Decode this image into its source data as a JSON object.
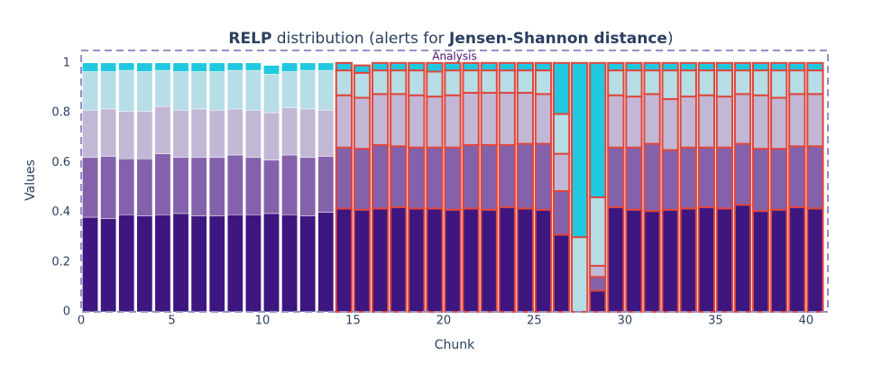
{
  "chart_data": {
    "type": "stacked-bar",
    "title": [
      {
        "text": "RELP",
        "bold": true
      },
      {
        "text": " distribution (alerts for ",
        "bold": false
      },
      {
        "text": "Jensen-Shannon distance",
        "bold": true
      },
      {
        "text": ")",
        "bold": false
      }
    ],
    "x_label": "Chunk",
    "y_label": "Values",
    "annotation": "Analysis",
    "x": [
      0.5,
      1.5,
      2.5,
      3.5,
      4.5,
      5.5,
      6.5,
      7.5,
      8.5,
      9.5,
      10.5,
      11.5,
      12.5,
      13.5,
      14.5,
      15.5,
      16.5,
      17.5,
      18.5,
      19.5,
      20.5,
      21.5,
      22.5,
      23.5,
      24.5,
      25.5,
      26.5,
      27.5,
      28.5,
      29.5,
      30.5,
      31.5,
      32.5,
      33.5,
      34.5,
      35.5,
      36.5,
      37.5,
      38.5,
      39.5,
      40.5
    ],
    "alerts": [
      false,
      false,
      false,
      false,
      false,
      false,
      false,
      false,
      false,
      false,
      false,
      false,
      false,
      false,
      true,
      true,
      true,
      true,
      true,
      true,
      true,
      true,
      true,
      true,
      true,
      true,
      true,
      true,
      true,
      true,
      true,
      true,
      true,
      true,
      true,
      true,
      true,
      true,
      true,
      true,
      true
    ],
    "alert_color": "#e0463c",
    "series": [
      {
        "color": "#3d1680",
        "values": [
          0.38,
          0.375,
          0.39,
          0.385,
          0.39,
          0.395,
          0.385,
          0.385,
          0.39,
          0.39,
          0.395,
          0.39,
          0.385,
          0.4,
          0.415,
          0.41,
          0.415,
          0.42,
          0.415,
          0.415,
          0.41,
          0.415,
          0.41,
          0.42,
          0.415,
          0.41,
          0.31,
          0,
          0.085,
          0.42,
          0.41,
          0.405,
          0.41,
          0.415,
          0.42,
          0.415,
          0.43,
          0.405,
          0.41,
          0.42,
          0.415
        ]
      },
      {
        "color": "#8462ab",
        "values": [
          0.24,
          0.25,
          0.225,
          0.23,
          0.245,
          0.225,
          0.235,
          0.235,
          0.24,
          0.23,
          0.215,
          0.24,
          0.235,
          0.225,
          0.245,
          0.245,
          0.255,
          0.245,
          0.245,
          0.245,
          0.25,
          0.255,
          0.26,
          0.25,
          0.26,
          0.265,
          0.175,
          0,
          0.055,
          0.24,
          0.25,
          0.27,
          0.24,
          0.245,
          0.24,
          0.245,
          0.245,
          0.25,
          0.245,
          0.245,
          0.25
        ]
      },
      {
        "color": "#c2b8d5",
        "values": [
          0.19,
          0.19,
          0.19,
          0.19,
          0.19,
          0.19,
          0.195,
          0.19,
          0.185,
          0.19,
          0.19,
          0.19,
          0.195,
          0.185,
          0.21,
          0.205,
          0.205,
          0.21,
          0.21,
          0.205,
          0.21,
          0.21,
          0.21,
          0.21,
          0.205,
          0.2,
          0.15,
          0,
          0.045,
          0.21,
          0.205,
          0.2,
          0.205,
          0.205,
          0.21,
          0.205,
          0.2,
          0.215,
          0.205,
          0.21,
          0.21
        ]
      },
      {
        "color": "#b7dde6",
        "values": [
          0.155,
          0.15,
          0.165,
          0.16,
          0.145,
          0.155,
          0.15,
          0.155,
          0.155,
          0.16,
          0.155,
          0.145,
          0.155,
          0.16,
          0.1,
          0.1,
          0.095,
          0.095,
          0.1,
          0.1,
          0.1,
          0.09,
          0.09,
          0.09,
          0.09,
          0.095,
          0.16,
          0.3,
          0.275,
          0.1,
          0.105,
          0.095,
          0.115,
          0.105,
          0.1,
          0.105,
          0.095,
          0.1,
          0.11,
          0.095,
          0.095
        ]
      },
      {
        "color": "#20c9e0",
        "values": [
          0.035,
          0.035,
          0.03,
          0.035,
          0.03,
          0.035,
          0.035,
          0.035,
          0.03,
          0.03,
          0.035,
          0.035,
          0.03,
          0.03,
          0.03,
          0.03,
          0.03,
          0.03,
          0.03,
          0.035,
          0.03,
          0.03,
          0.03,
          0.03,
          0.03,
          0.03,
          0.205,
          0.7,
          0.54,
          0.03,
          0.03,
          0.03,
          0.03,
          0.03,
          0.03,
          0.03,
          0.03,
          0.03,
          0.03,
          0.03,
          0.03
        ]
      }
    ],
    "xlim": [
      0,
      41.2
    ],
    "xticks": [
      0,
      5,
      10,
      15,
      20,
      25,
      30,
      35,
      40
    ],
    "ylim": [
      0,
      1.05
    ],
    "yticks": [
      0,
      0.2,
      0.4,
      0.6,
      0.8,
      1
    ]
  }
}
